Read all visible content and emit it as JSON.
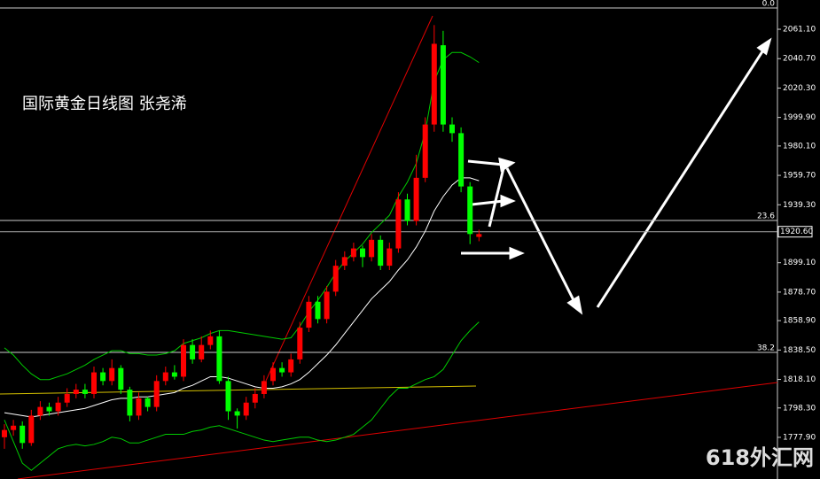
{
  "chart_data": {
    "type": "candlestick",
    "title": "国际黄金日线图  张尧浠",
    "watermark": "618外汇网",
    "up_color": "#ff0000",
    "down_color": "#00ff00",
    "open": [
      1778,
      1783,
      1786,
      1774,
      1793,
      1799,
      1796,
      1802,
      1808,
      1811,
      1808,
      1823,
      1817,
      1826,
      1811,
      1793,
      1805,
      1799,
      1817,
      1823,
      1820,
      1842,
      1832,
      1842,
      1848,
      1817,
      1796,
      1793,
      1802,
      1808,
      1817,
      1826,
      1823,
      1832,
      1854,
      1872,
      1860,
      1879,
      1897,
      1903,
      1909,
      1903,
      1915,
      1897,
      1909,
      1943,
      1928,
      1958,
      1995,
      2050,
      1995,
      1989,
      1952,
      1917
    ],
    "high": [
      1787,
      1790,
      1789,
      1797,
      1803,
      1802,
      1806,
      1812,
      1815,
      1815,
      1827,
      1826,
      1832,
      1828,
      1813,
      1809,
      1806,
      1821,
      1827,
      1828,
      1846,
      1846,
      1848,
      1852,
      1852,
      1820,
      1798,
      1806,
      1812,
      1821,
      1830,
      1830,
      1836,
      1858,
      1876,
      1876,
      1883,
      1901,
      1907,
      1913,
      1911,
      1919,
      1918,
      1913,
      1948,
      1947,
      1974,
      2000,
      2064,
      2060,
      2000,
      1993,
      1955,
      1922
    ],
    "low": [
      1770,
      1779,
      1770,
      1772,
      1790,
      1793,
      1793,
      1799,
      1805,
      1805,
      1805,
      1814,
      1814,
      1808,
      1789,
      1790,
      1796,
      1796,
      1814,
      1818,
      1817,
      1829,
      1830,
      1839,
      1815,
      1790,
      1784,
      1790,
      1798,
      1805,
      1814,
      1820,
      1820,
      1829,
      1851,
      1857,
      1857,
      1876,
      1894,
      1900,
      1896,
      1900,
      1894,
      1894,
      1906,
      1925,
      1925,
      1955,
      1990,
      1990,
      1983,
      1948,
      1912,
      1914
    ],
    "close": [
      1783,
      1786,
      1774,
      1793,
      1799,
      1796,
      1802,
      1808,
      1811,
      1808,
      1823,
      1817,
      1826,
      1811,
      1793,
      1805,
      1799,
      1817,
      1823,
      1820,
      1842,
      1832,
      1842,
      1848,
      1817,
      1796,
      1793,
      1802,
      1808,
      1817,
      1826,
      1823,
      1832,
      1854,
      1872,
      1860,
      1879,
      1897,
      1903,
      1909,
      1903,
      1915,
      1897,
      1909,
      1943,
      1928,
      1958,
      1995,
      2051,
      1995,
      1989,
      1952,
      1919,
      1919
    ],
    "lines": [
      {
        "color": "#ffffff",
        "values": [
          1795,
          1794,
          1793,
          1792,
          1793,
          1794,
          1795,
          1796,
          1797,
          1798,
          1800,
          1802,
          1804,
          1805,
          1805,
          1806,
          1806,
          1807,
          1808,
          1809,
          1812,
          1814,
          1817,
          1820,
          1820,
          1819,
          1817,
          1815,
          1813,
          1812,
          1812,
          1813,
          1815,
          1818,
          1823,
          1829,
          1835,
          1842,
          1850,
          1858,
          1866,
          1874,
          1880,
          1886,
          1894,
          1901,
          1910,
          1921,
          1935,
          1945,
          1953,
          1958,
          1958,
          1956
        ]
      },
      {
        "color": "#00cc00",
        "values": [
          1840,
          1835,
          1828,
          1822,
          1818,
          1818,
          1820,
          1822,
          1825,
          1828,
          1832,
          1835,
          1838,
          1838,
          1836,
          1836,
          1835,
          1835,
          1836,
          1838,
          1843,
          1845,
          1847,
          1850,
          1852,
          1852,
          1851,
          1850,
          1849,
          1848,
          1847,
          1846,
          1847,
          1855,
          1865,
          1873,
          1882,
          1892,
          1900,
          1906,
          1912,
          1920,
          1926,
          1932,
          1945,
          1955,
          1968,
          1990,
          2025,
          2040,
          2045,
          2045,
          2042,
          2038
        ]
      },
      {
        "color": "#00cc00",
        "values": [
          1790,
          1775,
          1760,
          1755,
          1760,
          1765,
          1770,
          1772,
          1773,
          1772,
          1773,
          1775,
          1778,
          1777,
          1774,
          1774,
          1776,
          1778,
          1780,
          1780,
          1780,
          1782,
          1783,
          1785,
          1786,
          1784,
          1782,
          1780,
          1778,
          1776,
          1775,
          1776,
          1777,
          1778,
          1778,
          1776,
          1775,
          1776,
          1778,
          1780,
          1785,
          1790,
          1798,
          1806,
          1812,
          1812,
          1815,
          1818,
          1820,
          1825,
          1835,
          1845,
          1852,
          1858
        ]
      }
    ],
    "ylim": [
      1749,
      2081.4
    ],
    "yticks": [
      {
        "value": 2061.1,
        "label": "2061.10"
      },
      {
        "value": 2040.7,
        "label": "2040.70"
      },
      {
        "value": 2020.3,
        "label": "2020.30"
      },
      {
        "value": 1999.9,
        "label": "1999.90"
      },
      {
        "value": 1980.1,
        "label": "1980.10"
      },
      {
        "value": 1959.7,
        "label": "1959.70"
      },
      {
        "value": 1939.3,
        "label": "1939.30"
      },
      {
        "value": 1899.1,
        "label": "1899.10"
      },
      {
        "value": 1878.7,
        "label": "1878.70"
      },
      {
        "value": 1858.9,
        "label": "1858.90"
      },
      {
        "value": 1838.5,
        "label": "1838.50"
      },
      {
        "value": 1818.1,
        "label": "1818.10"
      },
      {
        "value": 1798.3,
        "label": "1798.30"
      },
      {
        "value": 1777.9,
        "label": "1777.90"
      }
    ],
    "current_price": {
      "value": 1920.6,
      "label": "1920.60"
    },
    "fib_levels": [
      {
        "value": 2075.9,
        "label": "0.0"
      },
      {
        "value": 1928.4,
        "label": "23.6"
      },
      {
        "value": 1836.9,
        "label": "38.2"
      }
    ]
  }
}
